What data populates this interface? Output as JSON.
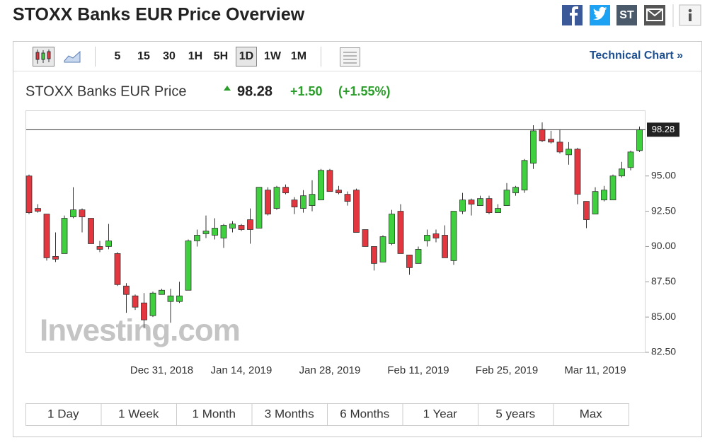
{
  "header": {
    "title": "STOXX Banks EUR Price Overview",
    "share_label": "ST"
  },
  "toolbar": {
    "intervals": [
      "5",
      "15",
      "30",
      "1H",
      "5H",
      "1D",
      "1W",
      "1M"
    ],
    "selected_interval": "1D",
    "technical_chart_link": "Technical Chart »"
  },
  "chart_data": {
    "type": "candlestick",
    "title": "STOXX Banks EUR Price",
    "last": 98.28,
    "change": "+1.50",
    "change_percent": "(+1.55%)",
    "watermark": "Investing.com",
    "categories": [
      null,
      null,
      null,
      null,
      null,
      null,
      null,
      null,
      null,
      null,
      null,
      null,
      null,
      null,
      null,
      "Dec 31, 2018",
      null,
      null,
      null,
      null,
      null,
      null,
      null,
      null,
      "Jan 14, 2019",
      null,
      null,
      null,
      null,
      null,
      null,
      null,
      null,
      null,
      "Jan 28, 2019",
      null,
      null,
      null,
      null,
      null,
      null,
      null,
      null,
      null,
      "Feb 11, 2019",
      null,
      null,
      null,
      null,
      null,
      null,
      null,
      null,
      null,
      "Feb 25, 2019",
      null,
      null,
      null,
      null,
      null,
      null,
      null,
      null,
      null,
      "Mar 11, 2019",
      null,
      null,
      null,
      null,
      null
    ],
    "open": [
      95.0,
      92.7,
      92.3,
      89.3,
      89.5,
      92.1,
      92.6,
      92.0,
      90.0,
      90.0,
      89.5,
      87.2,
      86.5,
      86.0,
      85.1,
      86.6,
      86.1,
      86.1,
      86.9,
      90.4,
      90.9,
      90.8,
      90.6,
      91.3,
      91.5,
      91.9,
      91.3,
      94.0,
      92.7,
      94.2,
      93.3,
      92.7,
      92.9,
      93.3,
      95.4,
      94.0,
      93.7,
      94.0,
      91.2,
      90.0,
      88.9,
      90.2,
      92.5,
      89.4,
      88.8,
      90.4,
      90.9,
      90.8,
      89.0,
      92.5,
      93.3,
      92.9,
      93.4,
      92.4,
      92.9,
      93.8,
      94.0,
      95.9,
      98.3,
      97.6,
      97.4,
      96.5,
      96.9,
      93.2,
      92.3,
      93.3,
      93.3,
      95.0,
      95.6,
      96.8
    ],
    "high": [
      95.1,
      93.0,
      92.3,
      91.0,
      92.2,
      94.2,
      92.7,
      92.0,
      90.4,
      91.6,
      89.6,
      87.4,
      86.6,
      86.7,
      86.8,
      87.0,
      87.0,
      87.5,
      90.5,
      91.2,
      92.2,
      92.0,
      91.6,
      91.8,
      91.6,
      92.7,
      94.2,
      94.2,
      94.3,
      94.4,
      93.5,
      94.0,
      94.7,
      95.5,
      95.5,
      94.3,
      93.9,
      94.1,
      91.2,
      90.0,
      90.8,
      92.6,
      93.0,
      89.4,
      90.0,
      91.2,
      91.2,
      91.5,
      92.5,
      93.8,
      93.4,
      93.6,
      93.6,
      93.0,
      94.5,
      94.3,
      96.2,
      98.6,
      98.8,
      98.2,
      98.3,
      97.4,
      97.0,
      93.2,
      94.2,
      94.3,
      95.1,
      96.0,
      96.8,
      98.5
    ],
    "low": [
      92.3,
      92.4,
      89.0,
      88.9,
      89.5,
      92.0,
      91.0,
      90.2,
      89.6,
      89.8,
      87.2,
      85.3,
      85.5,
      84.2,
      85.0,
      86.6,
      84.6,
      86.0,
      86.9,
      90.0,
      90.6,
      90.5,
      89.9,
      91.0,
      91.1,
      90.2,
      91.3,
      92.2,
      92.6,
      93.7,
      92.3,
      92.4,
      92.5,
      93.3,
      93.9,
      93.7,
      92.9,
      91.0,
      90.0,
      88.3,
      88.9,
      90.1,
      89.5,
      88.0,
      88.8,
      90.0,
      90.3,
      89.2,
      88.7,
      92.3,
      92.2,
      92.9,
      92.3,
      92.4,
      92.9,
      93.6,
      93.8,
      95.5,
      97.4,
      97.3,
      96.6,
      95.8,
      93.0,
      91.3,
      92.3,
      93.2,
      93.3,
      94.9,
      95.4,
      96.7
    ],
    "close": [
      92.4,
      92.5,
      89.2,
      89.1,
      92.0,
      92.6,
      92.1,
      90.2,
      89.8,
      90.4,
      87.3,
      86.6,
      85.7,
      84.8,
      86.7,
      86.9,
      86.5,
      86.5,
      90.4,
      90.8,
      91.1,
      91.3,
      91.5,
      91.6,
      91.2,
      91.2,
      94.2,
      92.3,
      94.2,
      93.8,
      92.8,
      93.6,
      93.7,
      95.4,
      93.9,
      93.8,
      93.2,
      91.0,
      90.0,
      88.8,
      90.7,
      92.3,
      89.5,
      88.5,
      89.8,
      90.8,
      90.6,
      89.2,
      92.5,
      93.3,
      93.0,
      93.4,
      92.4,
      92.7,
      94.0,
      94.2,
      96.1,
      98.2,
      97.5,
      97.4,
      96.7,
      96.9,
      93.7,
      91.9,
      93.9,
      94.0,
      95.0,
      95.5,
      96.7,
      98.28
    ],
    "up_color": "#3fcf3f",
    "down_color": "#e3363e",
    "ylim": [
      82.5,
      99.6
    ],
    "yticks": [
      {
        "value": 82.5,
        "label": "82.50"
      },
      {
        "value": 85,
        "label": "85.00"
      },
      {
        "value": 87.5,
        "label": "87.50"
      },
      {
        "value": 90,
        "label": "90.00"
      },
      {
        "value": 92.5,
        "label": "92.50"
      },
      {
        "value": 95,
        "label": "95.00"
      }
    ],
    "grid": false
  },
  "ranges": [
    "1 Day",
    "1 Week",
    "1 Month",
    "3 Months",
    "6 Months",
    "1 Year",
    "5 years",
    "Max"
  ]
}
